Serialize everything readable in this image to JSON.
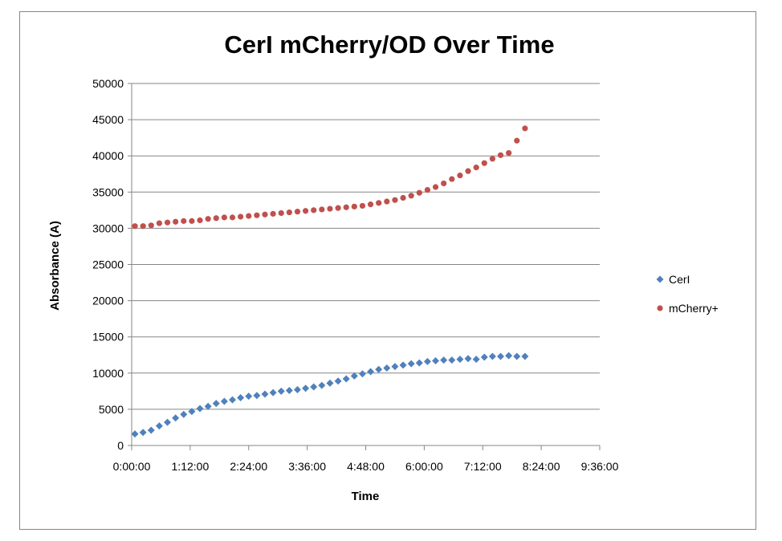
{
  "chart_data": {
    "type": "scatter",
    "title": "CerI mCherry/OD Over Time",
    "xlabel": "Time",
    "ylabel": "Absorbance (A)",
    "ylim": [
      0,
      50000
    ],
    "yticks": [
      "0",
      "5000",
      "10000",
      "15000",
      "20000",
      "25000",
      "30000",
      "35000",
      "40000",
      "45000",
      "50000"
    ],
    "xlim": [
      "0:00:00",
      "9:36:00"
    ],
    "xticks": [
      "0:00:00",
      "1:12:00",
      "2:24:00",
      "3:36:00",
      "4:48:00",
      "6:00:00",
      "7:12:00",
      "8:24:00",
      "9:36:00"
    ],
    "grid": "horizontal",
    "legend": "right",
    "x": [
      "0:04:00",
      "0:14:00",
      "0:24:00",
      "0:34:00",
      "0:44:00",
      "0:54:00",
      "1:04:00",
      "1:14:00",
      "1:24:00",
      "1:34:00",
      "1:44:00",
      "1:54:00",
      "2:04:00",
      "2:14:00",
      "2:24:00",
      "2:34:00",
      "2:44:00",
      "2:54:00",
      "3:04:00",
      "3:14:00",
      "3:24:00",
      "3:34:00",
      "3:44:00",
      "3:54:00",
      "4:04:00",
      "4:14:00",
      "4:24:00",
      "4:34:00",
      "4:44:00",
      "4:54:00",
      "5:04:00",
      "5:14:00",
      "5:24:00",
      "5:34:00",
      "5:44:00",
      "5:54:00",
      "6:04:00",
      "6:14:00",
      "6:24:00",
      "6:34:00",
      "6:44:00",
      "6:54:00",
      "7:04:00",
      "7:14:00",
      "7:24:00",
      "7:34:00",
      "7:44:00",
      "7:54:00",
      "8:04:00"
    ],
    "series": [
      {
        "name": "CerI",
        "color": "#4F81BD",
        "marker": "diamond",
        "values": [
          1600,
          1800,
          2100,
          2700,
          3200,
          3800,
          4300,
          4700,
          5100,
          5400,
          5800,
          6100,
          6300,
          6600,
          6800,
          6900,
          7100,
          7300,
          7500,
          7600,
          7700,
          7900,
          8100,
          8300,
          8600,
          8900,
          9200,
          9600,
          9900,
          10200,
          10500,
          10700,
          10900,
          11100,
          11300,
          11400,
          11600,
          11700,
          11800,
          11800,
          11900,
          12000,
          11900,
          12200,
          12300,
          12300,
          12400,
          12300,
          12300
        ]
      },
      {
        "name": "mCherry+",
        "color": "#C0504D",
        "marker": "circle",
        "values": [
          30300,
          30300,
          30400,
          30700,
          30800,
          30900,
          31000,
          31000,
          31100,
          31300,
          31400,
          31500,
          31500,
          31600,
          31700,
          31800,
          31900,
          32000,
          32100,
          32200,
          32300,
          32400,
          32500,
          32600,
          32700,
          32800,
          32900,
          33000,
          33100,
          33300,
          33500,
          33700,
          33900,
          34200,
          34500,
          34900,
          35300,
          35700,
          36200,
          36800,
          37300,
          37900,
          38400,
          39000,
          39600,
          40100,
          40400,
          42100,
          43800
        ]
      }
    ]
  }
}
